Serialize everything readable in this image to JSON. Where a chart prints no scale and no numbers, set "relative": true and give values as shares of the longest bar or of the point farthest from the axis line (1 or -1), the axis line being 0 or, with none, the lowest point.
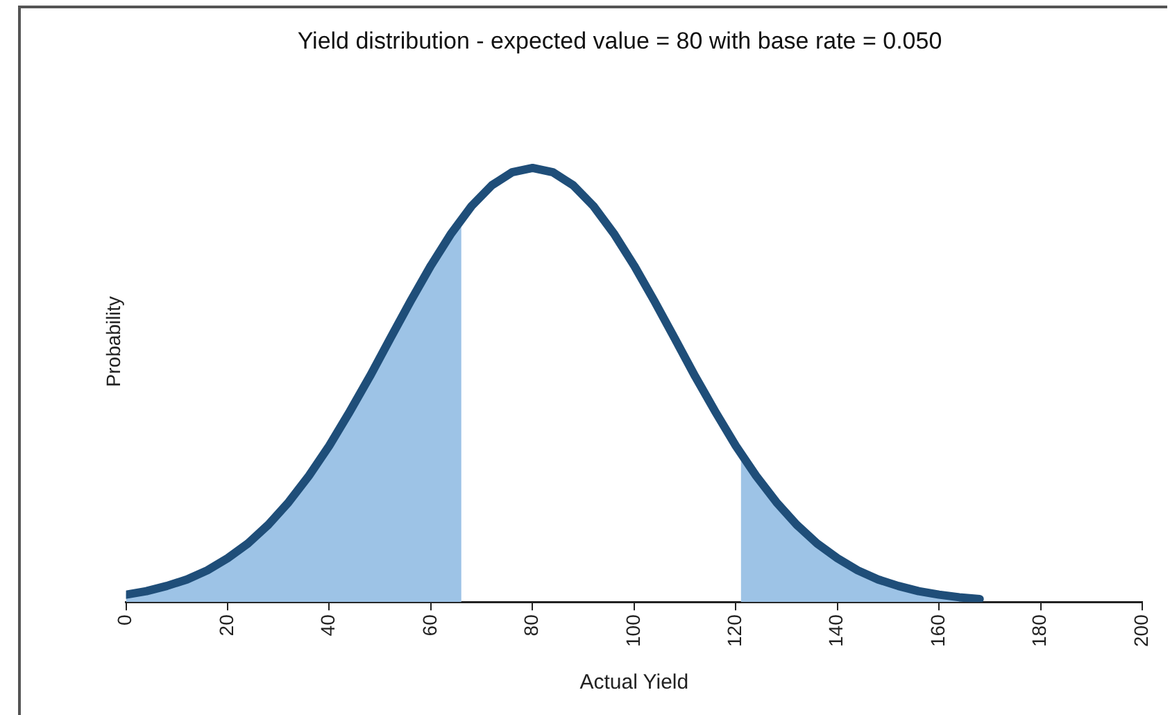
{
  "chart_data": {
    "type": "line",
    "title": "Yield distribution - expected value = 80 with base rate = 0.050",
    "xlabel": "Actual Yield",
    "ylabel": "Probability",
    "relative": true,
    "xlim": [
      0,
      200
    ],
    "xticks": [
      0,
      20,
      40,
      60,
      80,
      100,
      120,
      140,
      160,
      180,
      200
    ],
    "grid": false,
    "legend": false,
    "marker": "none",
    "line_style": "solid",
    "series": [
      {
        "type": "area",
        "color": "#9dc3e6",
        "x": [
          0,
          4,
          8,
          12,
          16,
          20,
          24,
          28,
          32,
          36,
          40,
          44,
          48,
          52,
          56,
          60,
          64,
          66
        ],
        "values": [
          0.017,
          0.025,
          0.037,
          0.052,
          0.073,
          0.101,
          0.135,
          0.178,
          0.23,
          0.291,
          0.36,
          0.438,
          0.52,
          0.607,
          0.693,
          0.775,
          0.849,
          0.883
        ]
      },
      {
        "type": "area",
        "color": "#9dc3e6",
        "x": [
          121,
          124,
          128,
          132,
          136,
          140,
          144,
          148,
          152,
          156,
          160,
          164,
          168
        ],
        "values": [
          0.342,
          0.291,
          0.23,
          0.178,
          0.135,
          0.101,
          0.073,
          0.052,
          0.037,
          0.025,
          0.017,
          0.011,
          0.007
        ]
      },
      {
        "type": "line",
        "color": "#1f4e79",
        "x": [
          0,
          4,
          8,
          12,
          16,
          20,
          24,
          28,
          32,
          36,
          40,
          44,
          48,
          52,
          56,
          60,
          64,
          68,
          72,
          76,
          80,
          84,
          88,
          92,
          96,
          100,
          104,
          108,
          112,
          116,
          120,
          124,
          128,
          132,
          136,
          140,
          144,
          148,
          152,
          156,
          160,
          164,
          168
        ],
        "values": [
          0.017,
          0.025,
          0.037,
          0.052,
          0.073,
          0.101,
          0.135,
          0.178,
          0.23,
          0.291,
          0.36,
          0.438,
          0.52,
          0.607,
          0.693,
          0.775,
          0.849,
          0.912,
          0.96,
          0.99,
          1,
          0.99,
          0.96,
          0.912,
          0.849,
          0.775,
          0.693,
          0.607,
          0.52,
          0.438,
          0.36,
          0.291,
          0.23,
          0.178,
          0.135,
          0.101,
          0.073,
          0.052,
          0.037,
          0.025,
          0.017,
          0.011,
          0.007
        ]
      }
    ]
  }
}
